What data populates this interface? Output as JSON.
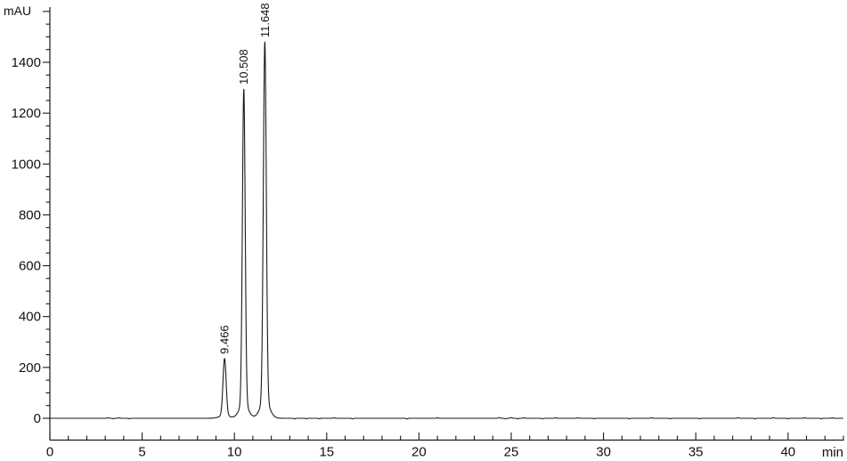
{
  "page": {
    "background": "#ffffff"
  },
  "chart_data": {
    "type": "line",
    "title": "",
    "xlabel": "min",
    "ylabel": "mAU",
    "line_color": "#1a1a1a",
    "axis_color": "#1a1a1a",
    "text_color": "#111111",
    "x_axis": {
      "label": "min",
      "range": [
        0,
        43
      ],
      "major_tick_step": 5,
      "minor_tick_step": 1,
      "labeled_ticks": [
        0,
        5,
        10,
        15,
        20,
        25,
        30,
        35,
        40
      ]
    },
    "y_axis": {
      "label": "mAU",
      "range": [
        0,
        1600
      ],
      "major_tick_step": 200,
      "minor_tick_step": 50,
      "labeled_ticks": [
        0,
        200,
        400,
        600,
        800,
        1000,
        1200,
        1400
      ]
    },
    "baseline_mau": 0,
    "peaks": [
      {
        "label": "9.466",
        "rt_min": 9.466,
        "height_mau": 235,
        "sigma_min": 0.085
      },
      {
        "label": "10.508",
        "rt_min": 10.508,
        "height_mau": 1295,
        "sigma_min": 0.075
      },
      {
        "label": "11.648",
        "rt_min": 11.648,
        "height_mau": 1480,
        "sigma_min": 0.08
      }
    ],
    "noise_blips": [
      [
        3.15,
        2.5
      ],
      [
        3.45,
        -2
      ],
      [
        3.75,
        2
      ],
      [
        4.3,
        -2
      ],
      [
        13.25,
        -2.5
      ],
      [
        13.9,
        -2
      ],
      [
        14.6,
        -2
      ],
      [
        15.4,
        2
      ],
      [
        16.4,
        -2.5
      ],
      [
        19.35,
        -3
      ],
      [
        21.0,
        2
      ],
      [
        24.35,
        3
      ],
      [
        24.7,
        -3
      ],
      [
        25.0,
        3
      ],
      [
        25.35,
        -2.5
      ],
      [
        25.7,
        2
      ],
      [
        26.7,
        -2.5
      ],
      [
        27.4,
        2
      ],
      [
        28.6,
        2
      ],
      [
        29.5,
        -2
      ],
      [
        31.4,
        -2.5
      ],
      [
        32.6,
        2
      ],
      [
        33.6,
        -2
      ],
      [
        35.2,
        -2
      ],
      [
        37.3,
        2.5
      ],
      [
        38.2,
        -2.5
      ],
      [
        39.2,
        2.5
      ],
      [
        40.0,
        -2
      ],
      [
        40.9,
        2
      ],
      [
        41.8,
        -2
      ],
      [
        42.4,
        2
      ]
    ]
  }
}
